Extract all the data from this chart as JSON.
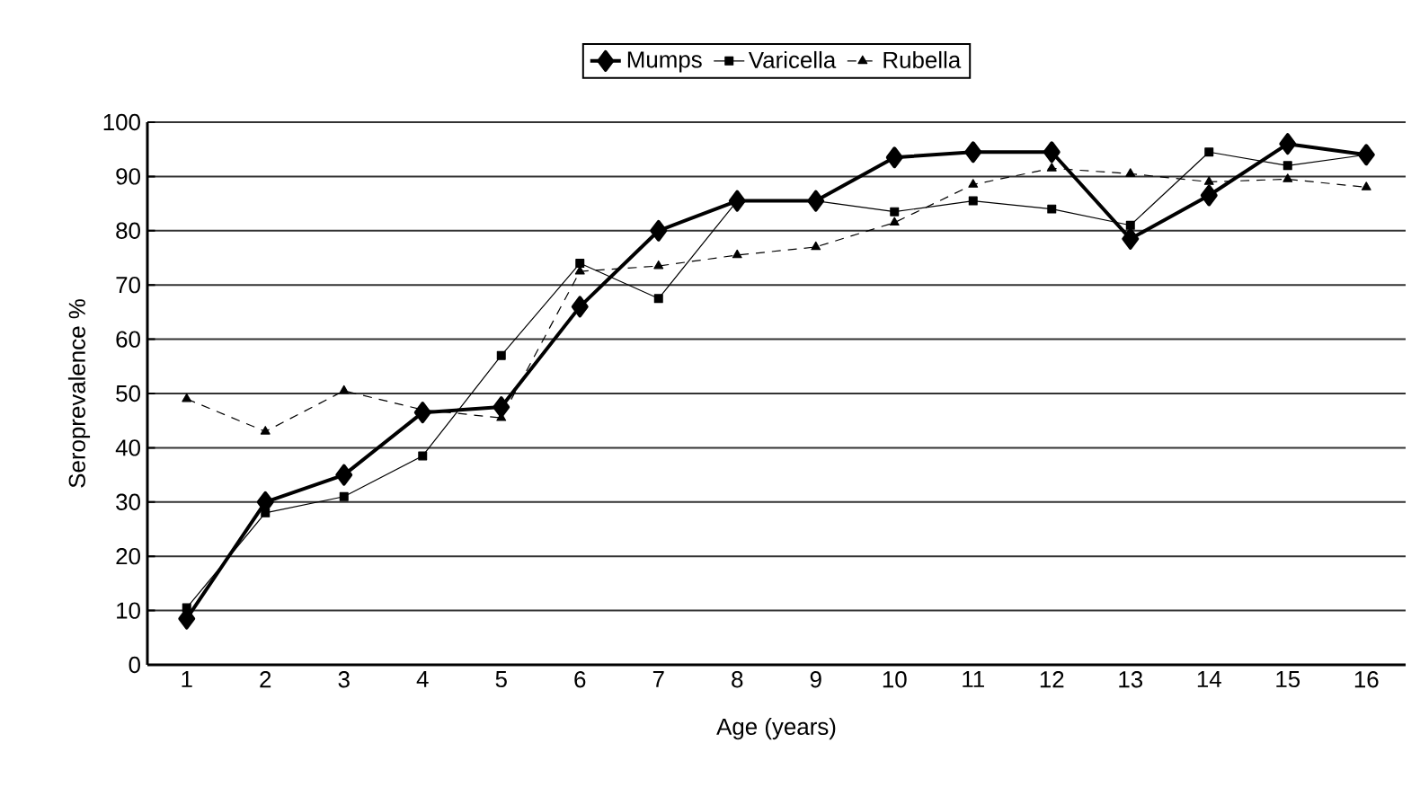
{
  "chart_data": {
    "type": "line",
    "xlabel": "Age (years)",
    "ylabel": "Seroprevalence %",
    "categories": [
      "1",
      "2",
      "3",
      "4",
      "5",
      "6",
      "7",
      "8",
      "9",
      "10",
      "11",
      "12",
      "13",
      "14",
      "15",
      "16"
    ],
    "series": [
      {
        "name": "Mumps",
        "color": "#000000",
        "marker": "diamond",
        "line_style": "solid",
        "values": [
          8.5,
          30,
          35,
          46.5,
          47.5,
          66,
          80,
          85.5,
          85.5,
          93.5,
          94.5,
          94.5,
          78.5,
          86.5,
          96,
          94
        ]
      },
      {
        "name": "Varicella",
        "color": "#000000",
        "marker": "square",
        "line_style": "solid",
        "values": [
          10.5,
          28,
          31,
          38.5,
          57,
          74,
          67.5,
          85.5,
          85.5,
          83.5,
          85.5,
          84,
          81,
          94.5,
          92,
          94
        ]
      },
      {
        "name": "Rubella",
        "color": "#000000",
        "marker": "triangle",
        "line_style": "dashed",
        "values": [
          49,
          43,
          50.5,
          47,
          45.5,
          72.5,
          73.5,
          75.5,
          77,
          81.5,
          88.5,
          91.5,
          90.5,
          89,
          89.5,
          88
        ]
      }
    ],
    "ylim": [
      0,
      100
    ],
    "yticks": [
      0,
      10,
      20,
      30,
      40,
      50,
      60,
      70,
      80,
      90,
      100
    ],
    "grid": "y",
    "legend": "top"
  }
}
